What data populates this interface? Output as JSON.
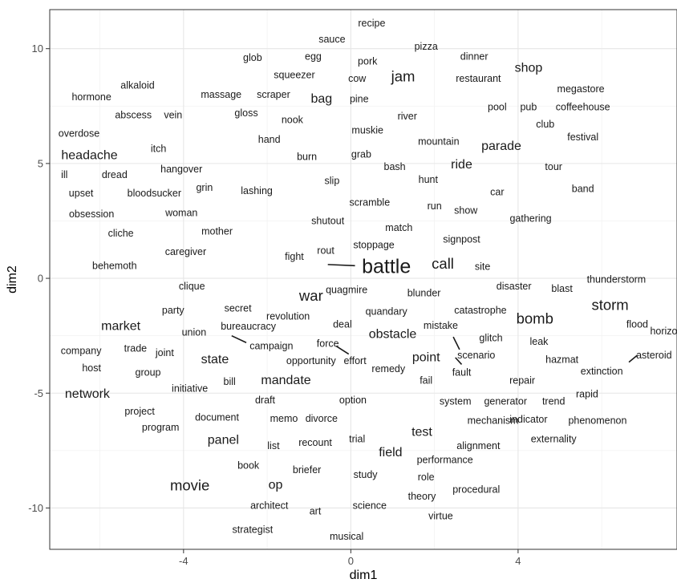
{
  "chart_data": {
    "type": "scatter",
    "xlabel": "dim1",
    "ylabel": "dim2",
    "xlim": [
      -7.2,
      7.8
    ],
    "ylim": [
      -11.8,
      11.7
    ],
    "x_ticks": [
      -4,
      0,
      4
    ],
    "y_ticks": [
      -10,
      -5,
      0,
      5,
      10
    ],
    "grid": true,
    "background": "#ffffff",
    "grid_color": "#e6e6e6",
    "text_color": "#1a1a1a",
    "points": [
      {
        "label": "recipe",
        "x": 0.5,
        "y": 11.1,
        "size": 1
      },
      {
        "label": "sauce",
        "x": -0.45,
        "y": 10.4,
        "size": 1
      },
      {
        "label": "pizza",
        "x": 1.8,
        "y": 10.1,
        "size": 1
      },
      {
        "label": "glob",
        "x": -2.35,
        "y": 9.6,
        "size": 1
      },
      {
        "label": "egg",
        "x": -0.9,
        "y": 9.65,
        "size": 1
      },
      {
        "label": "pork",
        "x": 0.4,
        "y": 9.45,
        "size": 1
      },
      {
        "label": "dinner",
        "x": 2.95,
        "y": 9.65,
        "size": 1
      },
      {
        "label": "shop",
        "x": 4.25,
        "y": 9.15,
        "size": 2
      },
      {
        "label": "squeezer",
        "x": -1.35,
        "y": 8.85,
        "size": 1
      },
      {
        "label": "cow",
        "x": 0.15,
        "y": 8.7,
        "size": 1
      },
      {
        "label": "jam",
        "x": 1.25,
        "y": 8.8,
        "size": 3
      },
      {
        "label": "restaurant",
        "x": 3.05,
        "y": 8.7,
        "size": 1
      },
      {
        "label": "alkaloid",
        "x": -5.1,
        "y": 8.4,
        "size": 1
      },
      {
        "label": "megastore",
        "x": 5.5,
        "y": 8.25,
        "size": 1
      },
      {
        "label": "hormone",
        "x": -6.2,
        "y": 7.9,
        "size": 1
      },
      {
        "label": "massage",
        "x": -3.1,
        "y": 8.0,
        "size": 1
      },
      {
        "label": "scraper",
        "x": -1.85,
        "y": 8.0,
        "size": 1
      },
      {
        "label": "bag",
        "x": -0.7,
        "y": 7.8,
        "size": 2
      },
      {
        "label": "pine",
        "x": 0.2,
        "y": 7.8,
        "size": 1
      },
      {
        "label": "pool",
        "x": 3.5,
        "y": 7.45,
        "size": 1
      },
      {
        "label": "pub",
        "x": 4.25,
        "y": 7.45,
        "size": 1
      },
      {
        "label": "coffeehouse",
        "x": 5.55,
        "y": 7.45,
        "size": 1
      },
      {
        "label": "abscess",
        "x": -5.2,
        "y": 7.1,
        "size": 1
      },
      {
        "label": "vein",
        "x": -4.25,
        "y": 7.1,
        "size": 1
      },
      {
        "label": "gloss",
        "x": -2.5,
        "y": 7.2,
        "size": 1
      },
      {
        "label": "nook",
        "x": -1.4,
        "y": 6.9,
        "size": 1
      },
      {
        "label": "river",
        "x": 1.35,
        "y": 7.05,
        "size": 1
      },
      {
        "label": "club",
        "x": 4.65,
        "y": 6.7,
        "size": 1
      },
      {
        "label": "overdose",
        "x": -6.5,
        "y": 6.3,
        "size": 1
      },
      {
        "label": "muskie",
        "x": 0.4,
        "y": 6.45,
        "size": 1
      },
      {
        "label": "festival",
        "x": 5.55,
        "y": 6.15,
        "size": 1
      },
      {
        "label": "hand",
        "x": -1.95,
        "y": 6.05,
        "size": 1
      },
      {
        "label": "mountain",
        "x": 2.1,
        "y": 5.95,
        "size": 1
      },
      {
        "label": "parade",
        "x": 3.6,
        "y": 5.75,
        "size": 2
      },
      {
        "label": "itch",
        "x": -4.6,
        "y": 5.65,
        "size": 1
      },
      {
        "label": "headache",
        "x": -6.25,
        "y": 5.35,
        "size": 2
      },
      {
        "label": "burn",
        "x": -1.05,
        "y": 5.3,
        "size": 1
      },
      {
        "label": "grab",
        "x": 0.25,
        "y": 5.4,
        "size": 1
      },
      {
        "label": "ride",
        "x": 2.65,
        "y": 4.95,
        "size": 2
      },
      {
        "label": "bash",
        "x": 1.05,
        "y": 4.85,
        "size": 1
      },
      {
        "label": "tour",
        "x": 4.85,
        "y": 4.85,
        "size": 1
      },
      {
        "label": "hangover",
        "x": -4.05,
        "y": 4.75,
        "size": 1
      },
      {
        "label": "ill",
        "x": -6.85,
        "y": 4.5,
        "size": 1
      },
      {
        "label": "dread",
        "x": -5.65,
        "y": 4.5,
        "size": 1
      },
      {
        "label": "slip",
        "x": -0.45,
        "y": 4.25,
        "size": 1
      },
      {
        "label": "hunt",
        "x": 1.85,
        "y": 4.3,
        "size": 1
      },
      {
        "label": "grin",
        "x": -3.5,
        "y": 3.95,
        "size": 1
      },
      {
        "label": "lashing",
        "x": -2.25,
        "y": 3.8,
        "size": 1
      },
      {
        "label": "band",
        "x": 5.55,
        "y": 3.9,
        "size": 1
      },
      {
        "label": "upset",
        "x": -6.45,
        "y": 3.7,
        "size": 1
      },
      {
        "label": "bloodsucker",
        "x": -4.7,
        "y": 3.7,
        "size": 1
      },
      {
        "label": "car",
        "x": 3.5,
        "y": 3.75,
        "size": 1
      },
      {
        "label": "scramble",
        "x": 0.45,
        "y": 3.3,
        "size": 1
      },
      {
        "label": "run",
        "x": 2.0,
        "y": 3.15,
        "size": 1
      },
      {
        "label": "show",
        "x": 2.75,
        "y": 2.95,
        "size": 1
      },
      {
        "label": "obsession",
        "x": -6.2,
        "y": 2.8,
        "size": 1
      },
      {
        "label": "woman",
        "x": -4.05,
        "y": 2.85,
        "size": 1
      },
      {
        "label": "shutout",
        "x": -0.55,
        "y": 2.5,
        "size": 1
      },
      {
        "label": "gathering",
        "x": 4.3,
        "y": 2.6,
        "size": 1
      },
      {
        "label": "match",
        "x": 1.15,
        "y": 2.2,
        "size": 1
      },
      {
        "label": "mother",
        "x": -3.2,
        "y": 2.05,
        "size": 1
      },
      {
        "label": "cliche",
        "x": -5.5,
        "y": 1.95,
        "size": 1
      },
      {
        "label": "signpost",
        "x": 2.65,
        "y": 1.7,
        "size": 1
      },
      {
        "label": "stoppage",
        "x": 0.55,
        "y": 1.45,
        "size": 1
      },
      {
        "label": "caregiver",
        "x": -3.95,
        "y": 1.15,
        "size": 1
      },
      {
        "label": "rout",
        "x": -0.6,
        "y": 1.2,
        "size": 1
      },
      {
        "label": "fight",
        "x": -1.35,
        "y": 0.95,
        "size": 1
      },
      {
        "label": "call",
        "x": 2.2,
        "y": 0.65,
        "size": 3
      },
      {
        "label": "battle",
        "x": 0.85,
        "y": 0.5,
        "size": 4
      },
      {
        "label": "site",
        "x": 3.15,
        "y": 0.5,
        "size": 1
      },
      {
        "label": "behemoth",
        "x": -5.65,
        "y": 0.55,
        "size": 1
      },
      {
        "label": "thunderstorm",
        "x": 6.35,
        "y": -0.05,
        "size": 1
      },
      {
        "label": "clique",
        "x": -3.8,
        "y": -0.35,
        "size": 1
      },
      {
        "label": "quagmire",
        "x": -0.1,
        "y": -0.5,
        "size": 1
      },
      {
        "label": "disaster",
        "x": 3.9,
        "y": -0.35,
        "size": 1
      },
      {
        "label": "blast",
        "x": 5.05,
        "y": -0.45,
        "size": 1
      },
      {
        "label": "war",
        "x": -0.95,
        "y": -0.75,
        "size": 3
      },
      {
        "label": "blunder",
        "x": 1.75,
        "y": -0.65,
        "size": 1
      },
      {
        "label": "storm",
        "x": 6.2,
        "y": -1.15,
        "size": 3
      },
      {
        "label": "secret",
        "x": -2.7,
        "y": -1.3,
        "size": 1
      },
      {
        "label": "party",
        "x": -4.25,
        "y": -1.4,
        "size": 1
      },
      {
        "label": "quandary",
        "x": 0.85,
        "y": -1.45,
        "size": 1
      },
      {
        "label": "catastrophe",
        "x": 3.1,
        "y": -1.4,
        "size": 1
      },
      {
        "label": "revolution",
        "x": -1.5,
        "y": -1.65,
        "size": 1
      },
      {
        "label": "bomb",
        "x": 4.4,
        "y": -1.75,
        "size": 3
      },
      {
        "label": "market",
        "x": -5.5,
        "y": -2.1,
        "size": 2
      },
      {
        "label": "bureaucracy",
        "x": -2.45,
        "y": -2.1,
        "size": 1
      },
      {
        "label": "deal",
        "x": -0.2,
        "y": -2.0,
        "size": 1
      },
      {
        "label": "mistake",
        "x": 2.15,
        "y": -2.05,
        "size": 1
      },
      {
        "label": "flood",
        "x": 6.85,
        "y": -2.0,
        "size": 1
      },
      {
        "label": "horizon",
        "x": 7.55,
        "y": -2.3,
        "size": 1
      },
      {
        "label": "union",
        "x": -3.75,
        "y": -2.35,
        "size": 1
      },
      {
        "label": "obstacle",
        "x": 1.0,
        "y": -2.45,
        "size": 2
      },
      {
        "label": "glitch",
        "x": 3.35,
        "y": -2.6,
        "size": 1
      },
      {
        "label": "force",
        "x": -0.55,
        "y": -2.85,
        "size": 1
      },
      {
        "label": "campaign",
        "x": -1.9,
        "y": -2.95,
        "size": 1
      },
      {
        "label": "leak",
        "x": 4.5,
        "y": -2.75,
        "size": 1
      },
      {
        "label": "company",
        "x": -6.45,
        "y": -3.15,
        "size": 1
      },
      {
        "label": "trade",
        "x": -5.15,
        "y": -3.05,
        "size": 1
      },
      {
        "label": "joint",
        "x": -4.45,
        "y": -3.25,
        "size": 1
      },
      {
        "label": "asteroid",
        "x": 7.25,
        "y": -3.35,
        "size": 1
      },
      {
        "label": "scenario",
        "x": 3.0,
        "y": -3.35,
        "size": 1
      },
      {
        "label": "point",
        "x": 1.8,
        "y": -3.45,
        "size": 2
      },
      {
        "label": "state",
        "x": -3.25,
        "y": -3.55,
        "size": 2
      },
      {
        "label": "opportunity",
        "x": -0.95,
        "y": -3.6,
        "size": 1
      },
      {
        "label": "effort",
        "x": 0.1,
        "y": -3.6,
        "size": 1
      },
      {
        "label": "hazmat",
        "x": 5.05,
        "y": -3.55,
        "size": 1
      },
      {
        "label": "host",
        "x": -6.2,
        "y": -3.9,
        "size": 1
      },
      {
        "label": "group",
        "x": -4.85,
        "y": -4.1,
        "size": 1
      },
      {
        "label": "remedy",
        "x": 0.9,
        "y": -3.95,
        "size": 1
      },
      {
        "label": "fault",
        "x": 2.65,
        "y": -4.1,
        "size": 1
      },
      {
        "label": "extinction",
        "x": 6.0,
        "y": -4.05,
        "size": 1
      },
      {
        "label": "mandate",
        "x": -1.55,
        "y": -4.45,
        "size": 2
      },
      {
        "label": "bill",
        "x": -2.9,
        "y": -4.5,
        "size": 1
      },
      {
        "label": "fail",
        "x": 1.8,
        "y": -4.45,
        "size": 1
      },
      {
        "label": "repair",
        "x": 4.1,
        "y": -4.45,
        "size": 1
      },
      {
        "label": "initiative",
        "x": -3.85,
        "y": -4.8,
        "size": 1
      },
      {
        "label": "network",
        "x": -6.3,
        "y": -5.05,
        "size": 2
      },
      {
        "label": "rapid",
        "x": 5.65,
        "y": -5.05,
        "size": 1
      },
      {
        "label": "draft",
        "x": -2.05,
        "y": -5.3,
        "size": 1
      },
      {
        "label": "option",
        "x": 0.05,
        "y": -5.3,
        "size": 1
      },
      {
        "label": "system",
        "x": 2.5,
        "y": -5.35,
        "size": 1
      },
      {
        "label": "generator",
        "x": 3.7,
        "y": -5.35,
        "size": 1
      },
      {
        "label": "trend",
        "x": 4.85,
        "y": -5.35,
        "size": 1
      },
      {
        "label": "project",
        "x": -5.05,
        "y": -5.8,
        "size": 1
      },
      {
        "label": "document",
        "x": -3.2,
        "y": -6.05,
        "size": 1
      },
      {
        "label": "memo",
        "x": -1.6,
        "y": -6.1,
        "size": 1
      },
      {
        "label": "divorce",
        "x": -0.7,
        "y": -6.1,
        "size": 1
      },
      {
        "label": "mechanism",
        "x": 3.4,
        "y": -6.2,
        "size": 1
      },
      {
        "label": "indicator",
        "x": 4.25,
        "y": -6.15,
        "size": 1
      },
      {
        "label": "phenomenon",
        "x": 5.9,
        "y": -6.2,
        "size": 1
      },
      {
        "label": "program",
        "x": -4.55,
        "y": -6.5,
        "size": 1
      },
      {
        "label": "test",
        "x": 1.7,
        "y": -6.7,
        "size": 2
      },
      {
        "label": "panel",
        "x": -3.05,
        "y": -7.05,
        "size": 2
      },
      {
        "label": "trial",
        "x": 0.15,
        "y": -7.0,
        "size": 1
      },
      {
        "label": "externality",
        "x": 4.85,
        "y": -7.0,
        "size": 1
      },
      {
        "label": "recount",
        "x": -0.85,
        "y": -7.15,
        "size": 1
      },
      {
        "label": "list",
        "x": -1.85,
        "y": -7.3,
        "size": 1
      },
      {
        "label": "alignment",
        "x": 3.05,
        "y": -7.3,
        "size": 1
      },
      {
        "label": "field",
        "x": 0.95,
        "y": -7.6,
        "size": 2
      },
      {
        "label": "performance",
        "x": 2.25,
        "y": -7.9,
        "size": 1
      },
      {
        "label": "book",
        "x": -2.45,
        "y": -8.15,
        "size": 1
      },
      {
        "label": "briefer",
        "x": -1.05,
        "y": -8.35,
        "size": 1
      },
      {
        "label": "study",
        "x": 0.35,
        "y": -8.55,
        "size": 1
      },
      {
        "label": "role",
        "x": 1.8,
        "y": -8.65,
        "size": 1
      },
      {
        "label": "movie",
        "x": -3.85,
        "y": -9.0,
        "size": 3
      },
      {
        "label": "op",
        "x": -1.8,
        "y": -9.0,
        "size": 2
      },
      {
        "label": "procedural",
        "x": 3.0,
        "y": -9.2,
        "size": 1
      },
      {
        "label": "theory",
        "x": 1.7,
        "y": -9.5,
        "size": 1
      },
      {
        "label": "architect",
        "x": -1.95,
        "y": -9.9,
        "size": 1
      },
      {
        "label": "science",
        "x": 0.45,
        "y": -9.9,
        "size": 1
      },
      {
        "label": "art",
        "x": -0.85,
        "y": -10.15,
        "size": 1
      },
      {
        "label": "virtue",
        "x": 2.15,
        "y": -10.35,
        "size": 1
      },
      {
        "label": "strategist",
        "x": -2.35,
        "y": -10.95,
        "size": 1
      },
      {
        "label": "musical",
        "x": -0.1,
        "y": -11.25,
        "size": 1
      }
    ],
    "segments": [
      {
        "x1": -0.55,
        "y1": 0.6,
        "x2": 0.1,
        "y2": 0.55
      },
      {
        "x1": -2.85,
        "y1": -2.5,
        "x2": -2.5,
        "y2": -2.8
      },
      {
        "x1": -0.35,
        "y1": -2.95,
        "x2": -0.05,
        "y2": -3.3
      },
      {
        "x1": 2.45,
        "y1": -2.55,
        "x2": 2.6,
        "y2": -3.1
      },
      {
        "x1": 2.5,
        "y1": -3.45,
        "x2": 2.65,
        "y2": -3.75
      },
      {
        "x1": 6.65,
        "y1": -3.65,
        "x2": 6.85,
        "y2": -3.35
      }
    ]
  }
}
